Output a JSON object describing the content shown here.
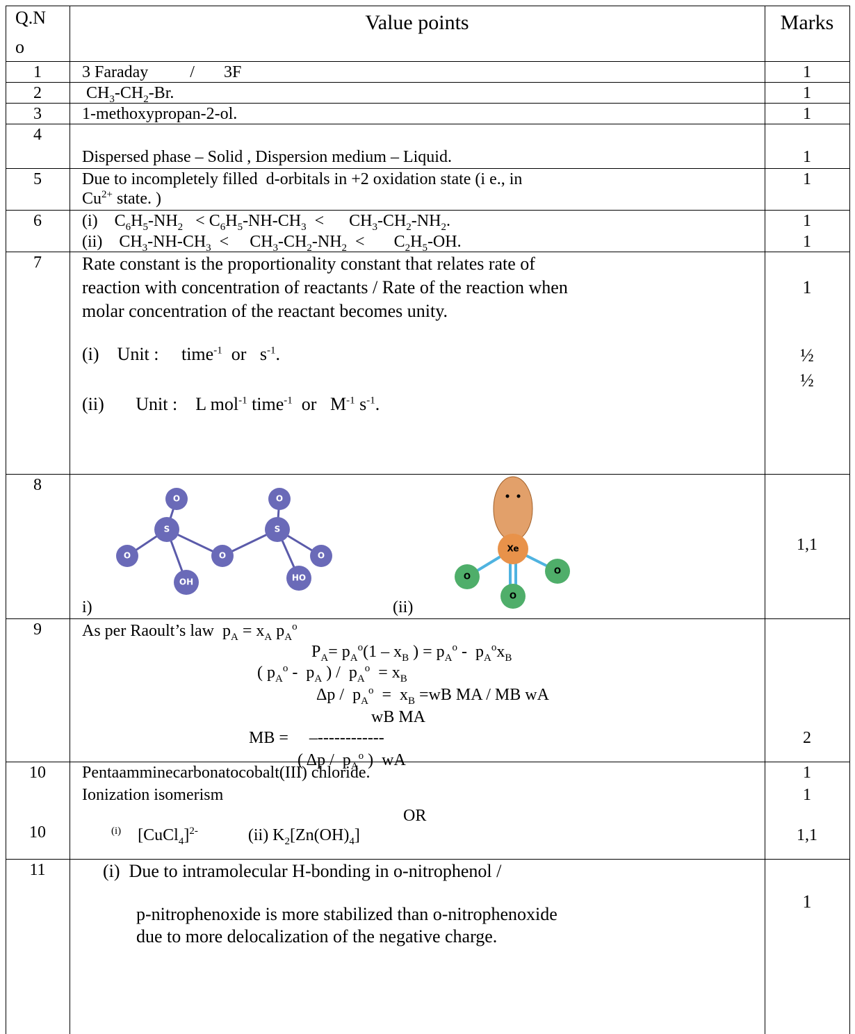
{
  "header": {
    "qno": [
      "Q.N",
      "o"
    ],
    "value_points": "Value points",
    "marks": "Marks"
  },
  "rows": [
    {
      "qno": [
        "1"
      ],
      "lines": [
        [
          "3 Faraday          /       3F"
        ]
      ],
      "marks": [
        "1"
      ]
    },
    {
      "qno": [
        "2"
      ],
      "lines": [
        [
          " CH",
          {
            "sub": "3"
          },
          "-CH",
          {
            "sub": "2"
          },
          "-Br."
        ]
      ],
      "marks": [
        "1"
      ]
    },
    {
      "qno": [
        "3"
      ],
      "lines": [
        [
          "1-methoxypropan-2-ol."
        ]
      ],
      "marks": [
        "1"
      ]
    },
    {
      "qno": [
        "4"
      ],
      "lines": [
        [
          "Dispersed phase – Solid , Dispersion medium – Liquid."
        ]
      ],
      "marks": [
        "1"
      ]
    },
    {
      "qno": [
        "5"
      ],
      "lines": [
        [
          "Due to incompletely filled  d-orbitals in +2 oxidation state (i e., in"
        ],
        [
          "Cu",
          {
            "sup": "2+"
          },
          " state. )"
        ]
      ],
      "marks": [
        "1"
      ]
    },
    {
      "qno": [
        "6"
      ],
      "lines": [
        [
          "(i)    C",
          {
            "sub": "6"
          },
          "H",
          {
            "sub": "5"
          },
          "-NH",
          {
            "sub": "2"
          },
          "   < C",
          {
            "sub": "6"
          },
          "H",
          {
            "sub": "5"
          },
          "-NH-CH",
          {
            "sub": "3"
          },
          "  <      CH",
          {
            "sub": "3"
          },
          "-CH",
          {
            "sub": "2"
          },
          "-NH",
          {
            "sub": "2"
          },
          "."
        ],
        [
          "(ii)    CH",
          {
            "sub": "3"
          },
          "-NH-CH",
          {
            "sub": "3"
          },
          "  <     CH",
          {
            "sub": "3"
          },
          "-CH",
          {
            "sub": "2"
          },
          "-NH",
          {
            "sub": "2"
          },
          "  <       C",
          {
            "sub": "2"
          },
          "H",
          {
            "sub": "5"
          },
          "-OH."
        ]
      ],
      "marks": [
        "1",
        "1"
      ]
    },
    {
      "qno": [
        "7"
      ],
      "lines": [
        [
          "Rate constant is the proportionality constant that relates rate of"
        ],
        [
          "reaction with concentration of reactants / Rate of the reaction when"
        ],
        [
          "molar concentration of the reactant becomes unity."
        ],
        [
          "(i)    Unit :     time",
          {
            "sup": "-1"
          },
          "  or   s",
          {
            "sup": "-1"
          },
          "."
        ],
        [
          "(ii)       Unit :    L mol",
          {
            "sup": "-1"
          },
          " time",
          {
            "sup": "-1"
          },
          "  or   M",
          {
            "sup": "-1"
          },
          " s",
          {
            "sup": "-1"
          },
          "."
        ]
      ],
      "marks": [
        "1",
        "½",
        "½"
      ]
    },
    {
      "qno": [
        "8"
      ],
      "lines": [
        [
          "i)"
        ],
        [
          "(ii)"
        ]
      ],
      "marks": [
        "1,1"
      ],
      "figures": [
        [
          "O",
          "S",
          "O",
          "OH",
          "O",
          "S",
          "O",
          "O",
          "HO"
        ],
        [
          "Xe",
          "O",
          "O",
          "O"
        ]
      ]
    },
    {
      "qno": [
        "9"
      ],
      "lines": [
        [
          "As per Raoult’s law  p",
          {
            "sub": "A"
          },
          " = x",
          {
            "sub": "A"
          },
          " p",
          {
            "sub": "A"
          },
          {
            "sup": "o"
          }
        ],
        [
          "P",
          {
            "sub": "A"
          },
          "= p",
          {
            "sub": "A"
          },
          {
            "sup": "o"
          },
          "(1 – x",
          {
            "sub": "B"
          },
          " ) = p",
          {
            "sub": "A"
          },
          {
            "sup": "o"
          },
          " -  p",
          {
            "sub": "A"
          },
          {
            "sup": "o"
          },
          "x",
          {
            "sub": "B"
          }
        ],
        [
          "( p",
          {
            "sub": "A"
          },
          {
            "sup": "o"
          },
          " -  p",
          {
            "sub": "A"
          },
          " ) /  p",
          {
            "sub": "A"
          },
          {
            "sup": "o"
          },
          "  = x",
          {
            "sub": "B"
          }
        ],
        [
          "Δp /  p",
          {
            "sub": "A"
          },
          {
            "sup": "o"
          },
          "  =  x",
          {
            "sub": "B"
          },
          " =wB MA / MB wA"
        ],
        [
          "wB MA"
        ],
        [
          "MB =     –------------"
        ],
        [
          "( Δp /  p",
          {
            "sub": "A"
          },
          {
            "sup": "o"
          },
          " )  wA"
        ]
      ],
      "marks": [
        "2"
      ]
    },
    {
      "qno": [
        "10",
        "10"
      ],
      "lines": [
        [
          "Pentaamminecarbonatocobalt(III) chloride."
        ],
        [
          "Ionization isomerism"
        ],
        [
          "OR"
        ],
        [
          {
            "sup": "(i)"
          },
          "    [CuCl",
          {
            "sub": "4"
          },
          "]",
          {
            "sup": "2-"
          },
          "            (ii) K",
          {
            "sub": "2"
          },
          "[Zn(OH)",
          {
            "sub": "4"
          },
          "]"
        ]
      ],
      "marks": [
        "1",
        "1",
        "1,1"
      ]
    },
    {
      "qno": [
        "11"
      ],
      "lines": [
        [
          "(i)  Due to intramolecular H-bonding in o-nitrophenol /"
        ],
        [
          "p-nitrophenoxide is more stabilized than o-nitrophenoxide"
        ],
        [
          "due to more delocalization of the negative charge."
        ]
      ],
      "marks": [
        "1"
      ]
    }
  ]
}
